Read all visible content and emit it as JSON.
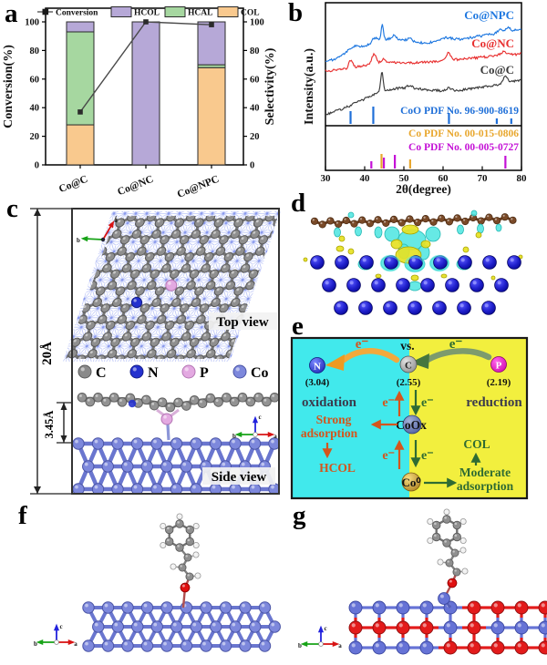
{
  "panels": {
    "a": {
      "label": "a",
      "chart_data": {
        "type": "bar",
        "categories": [
          "Co@C",
          "Co@NC",
          "Co@NPC"
        ],
        "series": [
          {
            "name": "COL",
            "color": "#f9c98e",
            "values": [
              28,
              0,
              68
            ]
          },
          {
            "name": "HCAL",
            "color": "#a6d7a0",
            "values": [
              65,
              0,
              2
            ]
          },
          {
            "name": "HCOL",
            "color": "#b6a8d7",
            "values": [
              7,
              100,
              30
            ]
          }
        ],
        "line": {
          "name": "Conversion",
          "color": "#3f3f3f",
          "values": [
            37,
            100,
            98
          ]
        },
        "ylabel_left": "Conversion(%)",
        "ylabel_right": "Selectivity(%)",
        "ylim": [
          0,
          100
        ],
        "yticks": [
          0,
          20,
          40,
          60,
          80,
          100
        ],
        "legend_order": [
          "Conversion",
          "HCOL",
          "HCAL",
          "COL"
        ]
      }
    },
    "b": {
      "label": "b",
      "chart_data": {
        "type": "line",
        "xlabel": "2θ(degree)",
        "ylabel": "Intensity(a.u.)",
        "xlim": [
          30,
          80
        ],
        "xticks": [
          30,
          40,
          50,
          60,
          70,
          80
        ],
        "curves": [
          {
            "label": "Co@NPC",
            "color": "#1f78e0",
            "seed": 1,
            "base_left": 68,
            "base_right": 32,
            "peaks": [
              [
                37,
                6,
                2.5
              ],
              [
                45,
                14,
                8
              ],
              [
                42.5,
                5,
                0.8
              ],
              [
                44.5,
                17,
                0.4
              ],
              [
                47.5,
                4,
                0.7
              ],
              [
                51.5,
                3.5,
                0.8
              ],
              [
                60.5,
                4,
                2.5
              ],
              [
                74.5,
                3,
                0.8
              ],
              [
                76.5,
                4,
                0.8
              ]
            ],
            "label_x": 254,
            "label_y": 21
          },
          {
            "label": "Co@NC",
            "color": "#e83030",
            "seed": 2,
            "base_left": 78,
            "base_right": 59,
            "peaks": [
              [
                36.5,
                9,
                0.7
              ],
              [
                42.4,
                11,
                0.7
              ],
              [
                44.8,
                4,
                0.6
              ],
              [
                61.4,
                9,
                0.7
              ],
              [
                75.5,
                4,
                1.2
              ],
              [
                44,
                4,
                6
              ]
            ],
            "label_x": 254,
            "label_y": 52
          },
          {
            "label": "Co@C",
            "color": "#3a3a3a",
            "seed": 3,
            "base_left": 127,
            "base_right": 88,
            "peaks": [
              [
                47,
                16,
                11
              ],
              [
                44.4,
                21,
                0.45
              ],
              [
                51.5,
                3,
                0.8
              ],
              [
                61.5,
                3,
                1
              ],
              [
                75.9,
                8,
                0.8
              ]
            ],
            "label_x": 254,
            "label_y": 81
          }
        ],
        "refs": [
          {
            "label": "CoO PDF No. 96-900-8619",
            "color": "#1f6fd8",
            "baseline": 136,
            "sticks": [
              [
                36.4,
                14
              ],
              [
                42.2,
                19
              ],
              [
                61.5,
                12
              ],
              [
                73.7,
                6
              ],
              [
                77.4,
                6
              ]
            ],
            "label_x": 259,
            "label_y": 125
          },
          {
            "label": "Co PDF No. 00-015-0806",
            "color": "#e8a72e",
            "baseline": 185,
            "sticks": [
              [
                44.3,
                16
              ],
              [
                51.6,
                10
              ]
            ],
            "label_x": 259,
            "label_y": 150
          },
          {
            "label": "Co PDF No. 00-005-0727",
            "color": "#c411d6",
            "baseline": 185,
            "sticks": [
              [
                41.7,
                8
              ],
              [
                44.9,
                12
              ],
              [
                47.7,
                15
              ],
              [
                75.9,
                14
              ]
            ],
            "label_x": 259,
            "label_y": 165
          }
        ]
      }
    },
    "c": {
      "label": "c",
      "height_label": "20Å",
      "gap_label": "3.45Å",
      "top_view": "Top view",
      "side_view": "Side view",
      "legend": [
        {
          "element": "C",
          "color": "#8a8a8a"
        },
        {
          "element": "N",
          "color": "#2431cf"
        },
        {
          "element": "P",
          "color": "#e3a9e1"
        },
        {
          "element": "Co",
          "color": "#7d88dc"
        }
      ],
      "axis_top": {
        "a": "a",
        "b": "b"
      },
      "axis_side": {
        "a": "a",
        "b": "b",
        "c": "c"
      }
    },
    "d": {
      "label": "d"
    },
    "e": {
      "label": "e",
      "vs": "vs.",
      "electron": "e⁻",
      "nodes": {
        "n": {
          "symbol": "N",
          "en": "(3.04)"
        },
        "c": {
          "symbol": "C",
          "en": "(2.55)"
        },
        "p": {
          "symbol": "P",
          "en": "(2.19)"
        },
        "coox": "CoOx",
        "co0": "Co⁰"
      },
      "left_title": "oxidation",
      "right_title": "reduction",
      "strong_line1": "Strong",
      "strong_line2": "adsorption",
      "hcol": "HCOL",
      "col": "COL",
      "moderate_line1": "Moderate",
      "moderate_line2": "adsorption",
      "colors": {
        "cyan_bg": "#41e9ec",
        "yellow_bg": "#f2ef3e",
        "orange": "#d4551c",
        "green": "#2f6b33"
      }
    },
    "f": {
      "label": "f",
      "axis": {
        "a": "a",
        "b": "b",
        "c": "c"
      }
    },
    "g": {
      "label": "g",
      "axis": {
        "a": "a",
        "b": "b",
        "c": "c"
      }
    }
  }
}
